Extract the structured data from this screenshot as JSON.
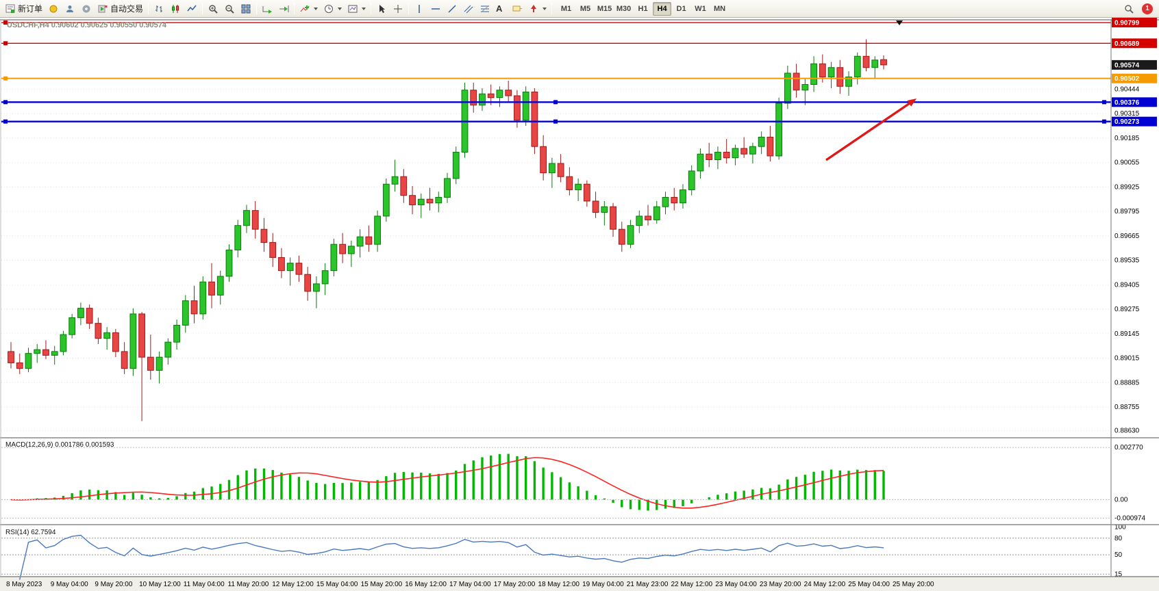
{
  "toolbar": {
    "new_order_label": "新订单",
    "auto_trading_label": "自动交易",
    "text_tool_label": "A",
    "timeframes": [
      "M1",
      "M5",
      "M15",
      "M30",
      "H1",
      "H4",
      "D1",
      "W1",
      "MN"
    ],
    "active_timeframe": "H4",
    "notification_count": "1"
  },
  "chart": {
    "title": "USDCHF,H4 0.90602 0.90625 0.90550 0.90574",
    "symbol": "USDCHF",
    "period": "H4",
    "ohlc": {
      "open": "0.90602",
      "high": "0.90625",
      "low": "0.90550",
      "close": "0.90574"
    },
    "current_price": "0.90574",
    "levels": [
      {
        "price": 0.90799,
        "label": "0.90799",
        "color": "#d40000",
        "width": 1.4,
        "handles": "left"
      },
      {
        "price": 0.90689,
        "label": "0.90689",
        "color": "#d40000",
        "width": 1.4,
        "handles": "left"
      },
      {
        "price": 0.90502,
        "label": "0.90502",
        "color": "#f59a00",
        "width": 2,
        "handles": "left"
      },
      {
        "price": 0.90376,
        "label": "0.90376",
        "color": "#0000d4",
        "width": 2.4,
        "handles": "all"
      },
      {
        "price": 0.90273,
        "label": "0.90273",
        "color": "#0000d4",
        "width": 2.4,
        "handles": "all"
      }
    ],
    "axis_ticks": [
      "0.90444",
      "0.90315",
      "0.90185",
      "0.90055",
      "0.89925",
      "0.89795",
      "0.89665",
      "0.89535",
      "0.89405",
      "0.89275",
      "0.89145",
      "0.89015",
      "0.88885",
      "0.88755",
      "0.88630"
    ],
    "arrow": {
      "color": "#e01818"
    },
    "colors": {
      "bull_fill": "#2bc42b",
      "bull_stroke": "#0a7a0a",
      "bear_fill": "#e84545",
      "bear_stroke": "#9e1a1a",
      "grid": "#e3e3e3",
      "current_tag": "#1a1a1a"
    }
  },
  "indicators": {
    "macd": {
      "label": "MACD(12,26,9) 0.001786 0.001593",
      "fast": 12,
      "slow": 26,
      "signal": 9,
      "value": "0.001786",
      "signal_value": "0.001593",
      "axis_labels": [
        {
          "text": "0.002770",
          "value": 0.00277
        },
        {
          "text": "0.00",
          "value": 0
        },
        {
          "text": "-0.000974",
          "value": -0.000974
        }
      ],
      "histogram_color": "#00b800",
      "signal_color": "#ff2020"
    },
    "rsi": {
      "label": "RSI(14) 62.7594",
      "period": 14,
      "value": "62.7594",
      "axis_labels": [
        {
          "text": "100",
          "value": 100
        },
        {
          "text": "80",
          "value": 80
        },
        {
          "text": "50",
          "value": 50
        },
        {
          "text": "15",
          "value": 15
        }
      ],
      "levels": [
        80,
        50,
        15
      ],
      "line_color": "#4878c0"
    }
  },
  "chart_data": {
    "type": "candlestick",
    "symbol": "USDCHF",
    "timeframe": "H4",
    "ylim": [
      0.88595,
      0.9081
    ],
    "macd_ylim": [
      -0.00125,
      0.00325
    ],
    "rsi_ylim": [
      13,
      102
    ],
    "x_labels": [
      "8 May 2023",
      "9 May 04:00",
      "9 May 20:00",
      "10 May 12:00",
      "11 May 04:00",
      "11 May 20:00",
      "12 May 12:00",
      "15 May 04:00",
      "15 May 20:00",
      "16 May 12:00",
      "17 May 04:00",
      "17 May 20:00",
      "18 May 12:00",
      "19 May 04:00",
      "21 May 23:00",
      "22 May 12:00",
      "23 May 04:00",
      "23 May 20:00",
      "24 May 12:00",
      "25 May 04:00",
      "25 May 20:00"
    ],
    "candles": [
      [
        0.8905,
        0.891,
        0.8896,
        0.8899
      ],
      [
        0.8899,
        0.8904,
        0.8893,
        0.8896
      ],
      [
        0.8896,
        0.8907,
        0.8894,
        0.8904
      ],
      [
        0.8904,
        0.8909,
        0.8899,
        0.8906
      ],
      [
        0.8906,
        0.8911,
        0.8901,
        0.8903
      ],
      [
        0.8903,
        0.8908,
        0.8898,
        0.8905
      ],
      [
        0.8905,
        0.8916,
        0.8903,
        0.8914
      ],
      [
        0.8914,
        0.8925,
        0.8912,
        0.8923
      ],
      [
        0.8923,
        0.8931,
        0.8919,
        0.8928
      ],
      [
        0.8928,
        0.893,
        0.8917,
        0.892
      ],
      [
        0.892,
        0.8923,
        0.8909,
        0.8912
      ],
      [
        0.8912,
        0.8918,
        0.8906,
        0.8915
      ],
      [
        0.8915,
        0.8917,
        0.8902,
        0.8905
      ],
      [
        0.8905,
        0.891,
        0.8893,
        0.8896
      ],
      [
        0.8896,
        0.8928,
        0.8892,
        0.8925
      ],
      [
        0.8925,
        0.8926,
        0.8868,
        0.8902
      ],
      [
        0.8902,
        0.8914,
        0.889,
        0.8895
      ],
      [
        0.8895,
        0.8905,
        0.8888,
        0.8902
      ],
      [
        0.8902,
        0.8912,
        0.8898,
        0.891
      ],
      [
        0.891,
        0.8922,
        0.8906,
        0.8919
      ],
      [
        0.8919,
        0.8935,
        0.8915,
        0.8932
      ],
      [
        0.8932,
        0.894,
        0.892,
        0.8925
      ],
      [
        0.8925,
        0.8945,
        0.8922,
        0.8942
      ],
      [
        0.8942,
        0.8952,
        0.8928,
        0.8935
      ],
      [
        0.8935,
        0.8948,
        0.893,
        0.8945
      ],
      [
        0.8945,
        0.8962,
        0.8942,
        0.8959
      ],
      [
        0.8959,
        0.8975,
        0.8955,
        0.8972
      ],
      [
        0.8972,
        0.8983,
        0.8968,
        0.898
      ],
      [
        0.898,
        0.8985,
        0.8965,
        0.897
      ],
      [
        0.897,
        0.8976,
        0.8958,
        0.8963
      ],
      [
        0.8963,
        0.8968,
        0.895,
        0.8955
      ],
      [
        0.8955,
        0.896,
        0.8944,
        0.8948
      ],
      [
        0.8948,
        0.8955,
        0.894,
        0.8952
      ],
      [
        0.8952,
        0.8956,
        0.8942,
        0.8946
      ],
      [
        0.8946,
        0.895,
        0.8932,
        0.8937
      ],
      [
        0.8937,
        0.8945,
        0.8928,
        0.8941
      ],
      [
        0.8941,
        0.8952,
        0.8935,
        0.8948
      ],
      [
        0.8948,
        0.8965,
        0.8945,
        0.8962
      ],
      [
        0.8962,
        0.8968,
        0.8952,
        0.8957
      ],
      [
        0.8957,
        0.8964,
        0.895,
        0.8961
      ],
      [
        0.8961,
        0.897,
        0.8955,
        0.8966
      ],
      [
        0.8966,
        0.8972,
        0.8958,
        0.8962
      ],
      [
        0.8962,
        0.898,
        0.8958,
        0.8977
      ],
      [
        0.8977,
        0.8997,
        0.8974,
        0.8994
      ],
      [
        0.8994,
        0.9007,
        0.899,
        0.8998
      ],
      [
        0.8998,
        0.9002,
        0.8984,
        0.8988
      ],
      [
        0.8988,
        0.8993,
        0.8978,
        0.8983
      ],
      [
        0.8983,
        0.8989,
        0.8976,
        0.8986
      ],
      [
        0.8986,
        0.8992,
        0.898,
        0.8984
      ],
      [
        0.8984,
        0.899,
        0.8979,
        0.8987
      ],
      [
        0.8987,
        0.9,
        0.8984,
        0.8997
      ],
      [
        0.8997,
        0.9014,
        0.8994,
        0.9011
      ],
      [
        0.9011,
        0.9048,
        0.9008,
        0.9044
      ],
      [
        0.9044,
        0.9048,
        0.9032,
        0.9036
      ],
      [
        0.9036,
        0.9045,
        0.9033,
        0.9042
      ],
      [
        0.9042,
        0.9047,
        0.9036,
        0.904
      ],
      [
        0.904,
        0.9046,
        0.9035,
        0.9044
      ],
      [
        0.9044,
        0.9049,
        0.9038,
        0.9041
      ],
      [
        0.9041,
        0.9044,
        0.9024,
        0.9028
      ],
      [
        0.9028,
        0.9046,
        0.9025,
        0.9043
      ],
      [
        0.9043,
        0.9045,
        0.901,
        0.9014
      ],
      [
        0.9014,
        0.902,
        0.8996,
        0.9
      ],
      [
        0.9,
        0.9008,
        0.8992,
        0.9005
      ],
      [
        0.9005,
        0.901,
        0.8995,
        0.8998
      ],
      [
        0.8998,
        0.9003,
        0.8988,
        0.8991
      ],
      [
        0.8991,
        0.8997,
        0.8985,
        0.8994
      ],
      [
        0.8994,
        0.8996,
        0.8982,
        0.8985
      ],
      [
        0.8985,
        0.899,
        0.8976,
        0.8979
      ],
      [
        0.8979,
        0.8985,
        0.8972,
        0.8982
      ],
      [
        0.8982,
        0.8984,
        0.8966,
        0.897
      ],
      [
        0.897,
        0.8974,
        0.8958,
        0.8962
      ],
      [
        0.8962,
        0.8975,
        0.896,
        0.8972
      ],
      [
        0.8972,
        0.898,
        0.8968,
        0.8977
      ],
      [
        0.8977,
        0.8983,
        0.8972,
        0.8975
      ],
      [
        0.8975,
        0.8985,
        0.8973,
        0.8982
      ],
      [
        0.8982,
        0.899,
        0.8978,
        0.8987
      ],
      [
        0.8987,
        0.8992,
        0.898,
        0.8984
      ],
      [
        0.8984,
        0.8994,
        0.8981,
        0.8991
      ],
      [
        0.8991,
        0.9004,
        0.8988,
        0.9001
      ],
      [
        0.9001,
        0.9013,
        0.8997,
        0.901
      ],
      [
        0.901,
        0.9016,
        0.9003,
        0.9007
      ],
      [
        0.9007,
        0.9014,
        0.9002,
        0.9011
      ],
      [
        0.9011,
        0.9018,
        0.9005,
        0.9008
      ],
      [
        0.9008,
        0.9015,
        0.9004,
        0.9013
      ],
      [
        0.9013,
        0.9019,
        0.9008,
        0.901
      ],
      [
        0.901,
        0.9016,
        0.9005,
        0.9014
      ],
      [
        0.9014,
        0.9022,
        0.901,
        0.9019
      ],
      [
        0.9019,
        0.9025,
        0.9006,
        0.9009
      ],
      [
        0.9009,
        0.904,
        0.9007,
        0.9037
      ],
      [
        0.9037,
        0.9057,
        0.9034,
        0.9053
      ],
      [
        0.9053,
        0.9058,
        0.904,
        0.9044
      ],
      [
        0.9044,
        0.905,
        0.9036,
        0.9047
      ],
      [
        0.9047,
        0.9062,
        0.9043,
        0.9058
      ],
      [
        0.9058,
        0.9063,
        0.9048,
        0.9051
      ],
      [
        0.9051,
        0.9059,
        0.9045,
        0.9056
      ],
      [
        0.9056,
        0.906,
        0.9042,
        0.9046
      ],
      [
        0.9046,
        0.9054,
        0.9041,
        0.9051
      ],
      [
        0.9051,
        0.9064,
        0.9047,
        0.9062
      ],
      [
        0.9062,
        0.9071,
        0.9054,
        0.9056
      ],
      [
        0.9056,
        0.9062,
        0.905,
        0.906
      ],
      [
        0.90602,
        0.90625,
        0.9055,
        0.90574
      ]
    ]
  }
}
